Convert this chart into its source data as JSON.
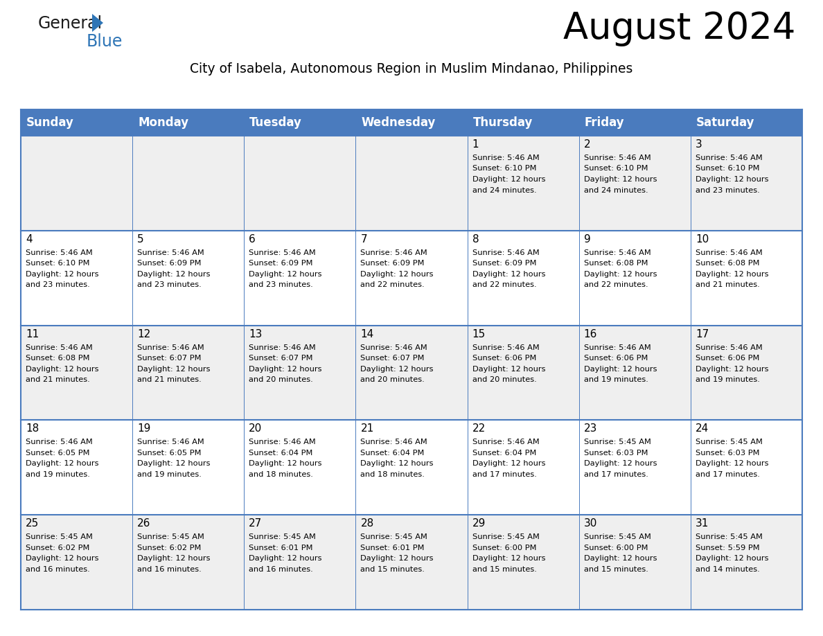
{
  "title": "August 2024",
  "subtitle": "City of Isabela, Autonomous Region in Muslim Mindanao, Philippines",
  "days_of_week": [
    "Sunday",
    "Monday",
    "Tuesday",
    "Wednesday",
    "Thursday",
    "Friday",
    "Saturday"
  ],
  "header_bg": "#4A7BBE",
  "header_text": "#FFFFFF",
  "cell_bg_light": "#EFEFEF",
  "cell_bg_white": "#FFFFFF",
  "grid_color": "#4A7BBE",
  "logo_general_color": "#1a1a1a",
  "logo_blue_color": "#2E75B6",
  "title_fontsize": 38,
  "subtitle_fontsize": 13.5,
  "header_fontsize": 12,
  "date_fontsize": 11,
  "info_fontsize": 8.2,
  "weeks": [
    [
      null,
      null,
      null,
      null,
      {
        "date": "1",
        "sunrise": "5:46 AM",
        "sunset": "6:10 PM",
        "dl1": "12 hours",
        "dl2": "and 24 minutes."
      },
      {
        "date": "2",
        "sunrise": "5:46 AM",
        "sunset": "6:10 PM",
        "dl1": "12 hours",
        "dl2": "and 24 minutes."
      },
      {
        "date": "3",
        "sunrise": "5:46 AM",
        "sunset": "6:10 PM",
        "dl1": "12 hours",
        "dl2": "and 23 minutes."
      }
    ],
    [
      {
        "date": "4",
        "sunrise": "5:46 AM",
        "sunset": "6:10 PM",
        "dl1": "12 hours",
        "dl2": "and 23 minutes."
      },
      {
        "date": "5",
        "sunrise": "5:46 AM",
        "sunset": "6:09 PM",
        "dl1": "12 hours",
        "dl2": "and 23 minutes."
      },
      {
        "date": "6",
        "sunrise": "5:46 AM",
        "sunset": "6:09 PM",
        "dl1": "12 hours",
        "dl2": "and 23 minutes."
      },
      {
        "date": "7",
        "sunrise": "5:46 AM",
        "sunset": "6:09 PM",
        "dl1": "12 hours",
        "dl2": "and 22 minutes."
      },
      {
        "date": "8",
        "sunrise": "5:46 AM",
        "sunset": "6:09 PM",
        "dl1": "12 hours",
        "dl2": "and 22 minutes."
      },
      {
        "date": "9",
        "sunrise": "5:46 AM",
        "sunset": "6:08 PM",
        "dl1": "12 hours",
        "dl2": "and 22 minutes."
      },
      {
        "date": "10",
        "sunrise": "5:46 AM",
        "sunset": "6:08 PM",
        "dl1": "12 hours",
        "dl2": "and 21 minutes."
      }
    ],
    [
      {
        "date": "11",
        "sunrise": "5:46 AM",
        "sunset": "6:08 PM",
        "dl1": "12 hours",
        "dl2": "and 21 minutes."
      },
      {
        "date": "12",
        "sunrise": "5:46 AM",
        "sunset": "6:07 PM",
        "dl1": "12 hours",
        "dl2": "and 21 minutes."
      },
      {
        "date": "13",
        "sunrise": "5:46 AM",
        "sunset": "6:07 PM",
        "dl1": "12 hours",
        "dl2": "and 20 minutes."
      },
      {
        "date": "14",
        "sunrise": "5:46 AM",
        "sunset": "6:07 PM",
        "dl1": "12 hours",
        "dl2": "and 20 minutes."
      },
      {
        "date": "15",
        "sunrise": "5:46 AM",
        "sunset": "6:06 PM",
        "dl1": "12 hours",
        "dl2": "and 20 minutes."
      },
      {
        "date": "16",
        "sunrise": "5:46 AM",
        "sunset": "6:06 PM",
        "dl1": "12 hours",
        "dl2": "and 19 minutes."
      },
      {
        "date": "17",
        "sunrise": "5:46 AM",
        "sunset": "6:06 PM",
        "dl1": "12 hours",
        "dl2": "and 19 minutes."
      }
    ],
    [
      {
        "date": "18",
        "sunrise": "5:46 AM",
        "sunset": "6:05 PM",
        "dl1": "12 hours",
        "dl2": "and 19 minutes."
      },
      {
        "date": "19",
        "sunrise": "5:46 AM",
        "sunset": "6:05 PM",
        "dl1": "12 hours",
        "dl2": "and 19 minutes."
      },
      {
        "date": "20",
        "sunrise": "5:46 AM",
        "sunset": "6:04 PM",
        "dl1": "12 hours",
        "dl2": "and 18 minutes."
      },
      {
        "date": "21",
        "sunrise": "5:46 AM",
        "sunset": "6:04 PM",
        "dl1": "12 hours",
        "dl2": "and 18 minutes."
      },
      {
        "date": "22",
        "sunrise": "5:46 AM",
        "sunset": "6:04 PM",
        "dl1": "12 hours",
        "dl2": "and 17 minutes."
      },
      {
        "date": "23",
        "sunrise": "5:45 AM",
        "sunset": "6:03 PM",
        "dl1": "12 hours",
        "dl2": "and 17 minutes."
      },
      {
        "date": "24",
        "sunrise": "5:45 AM",
        "sunset": "6:03 PM",
        "dl1": "12 hours",
        "dl2": "and 17 minutes."
      }
    ],
    [
      {
        "date": "25",
        "sunrise": "5:45 AM",
        "sunset": "6:02 PM",
        "dl1": "12 hours",
        "dl2": "and 16 minutes."
      },
      {
        "date": "26",
        "sunrise": "5:45 AM",
        "sunset": "6:02 PM",
        "dl1": "12 hours",
        "dl2": "and 16 minutes."
      },
      {
        "date": "27",
        "sunrise": "5:45 AM",
        "sunset": "6:01 PM",
        "dl1": "12 hours",
        "dl2": "and 16 minutes."
      },
      {
        "date": "28",
        "sunrise": "5:45 AM",
        "sunset": "6:01 PM",
        "dl1": "12 hours",
        "dl2": "and 15 minutes."
      },
      {
        "date": "29",
        "sunrise": "5:45 AM",
        "sunset": "6:00 PM",
        "dl1": "12 hours",
        "dl2": "and 15 minutes."
      },
      {
        "date": "30",
        "sunrise": "5:45 AM",
        "sunset": "6:00 PM",
        "dl1": "12 hours",
        "dl2": "and 15 minutes."
      },
      {
        "date": "31",
        "sunrise": "5:45 AM",
        "sunset": "5:59 PM",
        "dl1": "12 hours",
        "dl2": "and 14 minutes."
      }
    ]
  ]
}
